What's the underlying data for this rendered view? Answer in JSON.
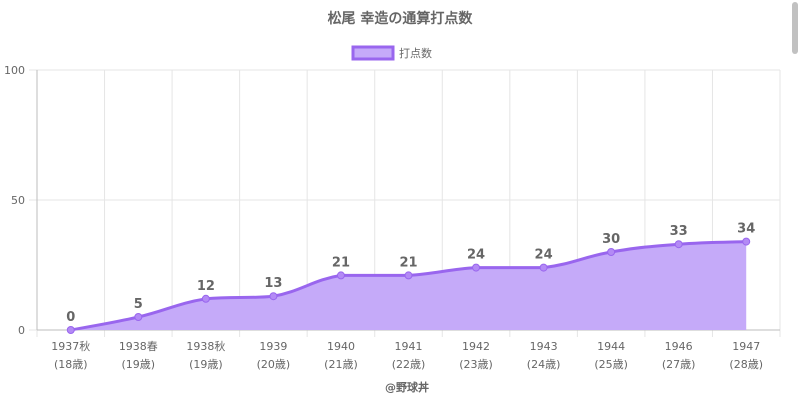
{
  "chart_data": {
    "type": "line",
    "title": "松尾 幸造の通算打点数",
    "categories": [
      [
        "1937秋",
        "(18歳)"
      ],
      [
        "1938春",
        "(19歳)"
      ],
      [
        "1938秋",
        "(19歳)"
      ],
      [
        "1939",
        "(20歳)"
      ],
      [
        "1940",
        "(21歳)"
      ],
      [
        "1941",
        "(22歳)"
      ],
      [
        "1942",
        "(23歳)"
      ],
      [
        "1943",
        "(24歳)"
      ],
      [
        "1944",
        "(25歳)"
      ],
      [
        "1946",
        "(27歳)"
      ],
      [
        "1947",
        "(28歳)"
      ]
    ],
    "series": [
      {
        "name": "打点数",
        "values": [
          0,
          5,
          12,
          13,
          21,
          21,
          24,
          24,
          30,
          33,
          34
        ]
      }
    ],
    "ylim": [
      0,
      100
    ],
    "yticks": [
      0,
      50,
      100
    ],
    "grid": true,
    "legend": "top-center",
    "fill": true,
    "data_labels": true,
    "colors": {
      "line": "#9966ee",
      "fill": "#c5aaf9",
      "point": "#b38af5"
    }
  },
  "credit": "@野球丼"
}
